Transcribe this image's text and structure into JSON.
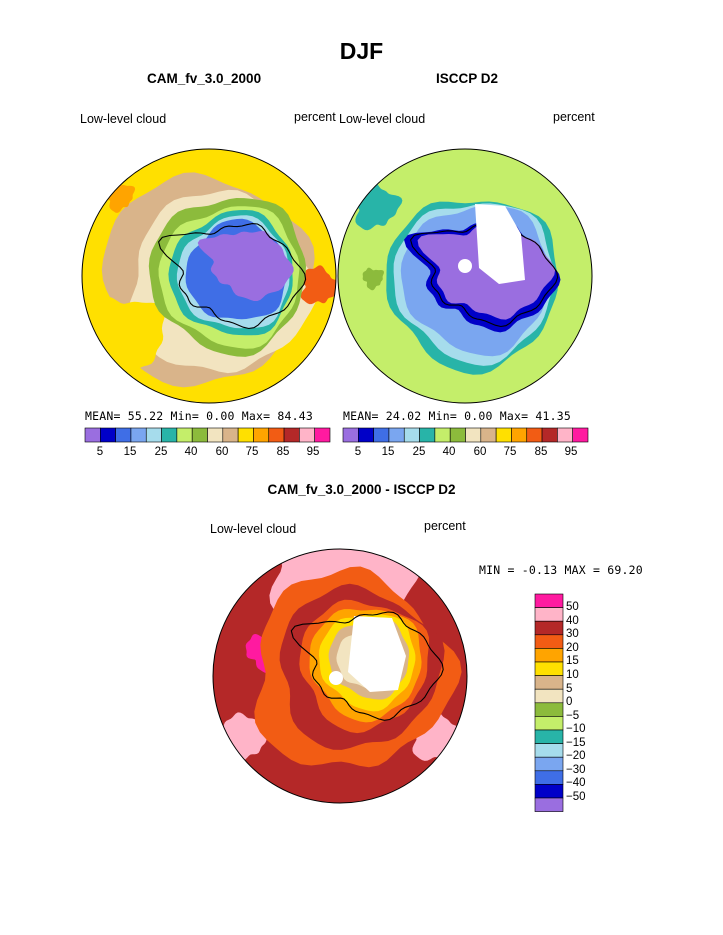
{
  "page_title": "DJF",
  "colors": {
    "abs_scale": [
      "#9a6ee0",
      "#0000c8",
      "#3f6ee6",
      "#7aa6f0",
      "#a6dcec",
      "#28b4a8",
      "#c4ee6a",
      "#8cbb3c",
      "#f2e4c0",
      "#d9b48a",
      "#ffe000",
      "#ffa400",
      "#f25c14",
      "#b42828",
      "#ffb4c8",
      "#ff1aa0"
    ],
    "diff_scale": [
      "#9a6ee0",
      "#0000c8",
      "#3f6ee6",
      "#7aa6f0",
      "#a6dcec",
      "#28b4a8",
      "#c4ee6a",
      "#8cbb3c",
      "#f2e4c0",
      "#d9b48a",
      "#ffe000",
      "#ffa400",
      "#f25c14",
      "#b42828",
      "#ffb4c8",
      "#ff1aa0"
    ],
    "continent_fill": "#9a6ee0",
    "coastline": "#000000"
  },
  "panels": [
    {
      "title": "CAM_fv_3.0_2000",
      "left_label": "Low-level cloud",
      "right_label": "percent",
      "stats": {
        "mean_label": "MEAN=",
        "mean": "55.22",
        "min_label": "Min=",
        "min": "0.00",
        "max_label": "Max=",
        "max": "84.43"
      },
      "tick_labels": [
        "5",
        "15",
        "25",
        "40",
        "60",
        "75",
        "85",
        "95"
      ]
    },
    {
      "title": "ISCCP D2",
      "left_label": "Low-level cloud",
      "right_label": "percent",
      "stats": {
        "mean_label": "MEAN=",
        "mean": "24.02",
        "min_label": "Min=",
        "min": "0.00",
        "max_label": "Max=",
        "max": "41.35"
      },
      "tick_labels": [
        "5",
        "15",
        "25",
        "40",
        "60",
        "75",
        "85",
        "95"
      ]
    },
    {
      "title": "CAM_fv_3.0_2000 - ISCCP D2",
      "left_label": "Low-level cloud",
      "right_label": "percent",
      "stats": {
        "min_label": "MIN =",
        "min": "-0.13",
        "max_label": "MAX =",
        "max": "69.20"
      },
      "tick_labels": [
        "50",
        "40",
        "30",
        "20",
        "15",
        "10",
        "5",
        "0",
        "−5",
        "−10",
        "−15",
        "−20",
        "−30",
        "−40",
        "−50"
      ]
    }
  ],
  "chart_data": [
    {
      "type": "heatmap",
      "title": "CAM_fv_3.0_2000",
      "projection": "south polar stereographic",
      "variable": "Low-level cloud",
      "units": "percent",
      "mean": 55.22,
      "min": 0.0,
      "max": 84.43,
      "contour_levels": [
        5,
        10,
        15,
        20,
        25,
        30,
        40,
        50,
        60,
        70,
        75,
        80,
        85,
        90,
        95
      ],
      "labeled_levels": [
        5,
        15,
        25,
        40,
        60,
        75,
        85,
        95
      ]
    },
    {
      "type": "heatmap",
      "title": "ISCCP D2",
      "projection": "south polar stereographic",
      "variable": "Low-level cloud",
      "units": "percent",
      "mean": 24.02,
      "min": 0.0,
      "max": 41.35,
      "contour_levels": [
        5,
        10,
        15,
        20,
        25,
        30,
        40,
        50,
        60,
        70,
        75,
        80,
        85,
        90,
        95
      ],
      "labeled_levels": [
        5,
        15,
        25,
        40,
        60,
        75,
        85,
        95
      ]
    },
    {
      "type": "heatmap",
      "title": "CAM_fv_3.0_2000 - ISCCP D2",
      "projection": "south polar stereographic",
      "variable": "Low-level cloud",
      "units": "percent",
      "min": -0.13,
      "max": 69.2,
      "contour_levels": [
        -50,
        -40,
        -30,
        -20,
        -15,
        -10,
        -5,
        0,
        5,
        10,
        15,
        20,
        30,
        40,
        50
      ],
      "labeled_levels": [
        50,
        40,
        30,
        20,
        15,
        10,
        5,
        0,
        -5,
        -10,
        -15,
        -20,
        -30,
        -40,
        -50
      ]
    }
  ]
}
